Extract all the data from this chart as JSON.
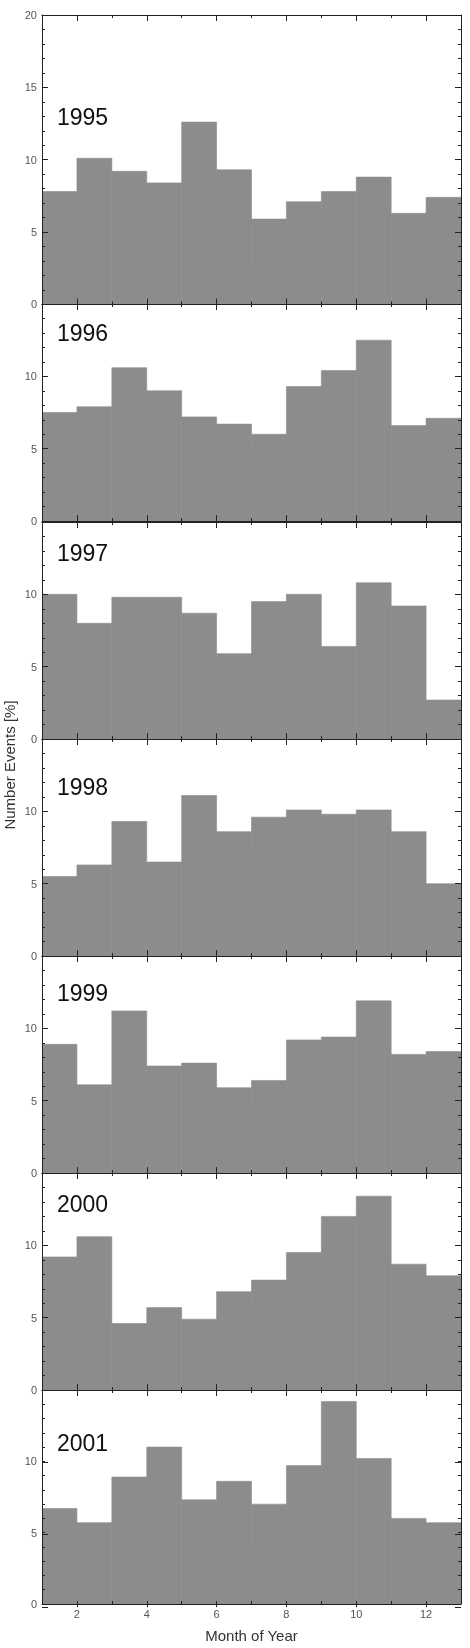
{
  "chart_data": [
    {
      "type": "histogram",
      "title": "1995",
      "bins": [
        1,
        2,
        3,
        4,
        5,
        6,
        7,
        8,
        9,
        10,
        11,
        12,
        13
      ],
      "values": [
        7.8,
        10.1,
        9.2,
        8.4,
        12.6,
        9.3,
        5.9,
        7.1,
        7.8,
        8.8,
        6.3,
        7.4
      ],
      "color": "#8c8c8c",
      "xlim": [
        1,
        13
      ],
      "xticks": [
        2,
        {
          "value": 3,
          "label": null
        },
        4,
        {
          "value": 5,
          "label": null
        },
        6,
        {
          "value": 7,
          "label": null
        },
        8,
        {
          "value": 9,
          "label": null
        },
        10,
        {
          "value": 11,
          "label": null
        },
        12
      ],
      "ylim": [
        0,
        20
      ],
      "yticks": [
        0,
        {
          "value": 1,
          "label": null
        },
        {
          "value": 2,
          "label": null
        },
        {
          "value": 3,
          "label": null
        },
        {
          "value": 4,
          "label": null
        },
        5,
        {
          "value": 6,
          "label": null
        },
        {
          "value": 7,
          "label": null
        },
        {
          "value": 8,
          "label": null
        },
        {
          "value": 9,
          "label": null
        },
        10,
        {
          "value": 11,
          "label": null
        },
        {
          "value": 12,
          "label": null
        },
        {
          "value": 13,
          "label": null
        },
        {
          "value": 14,
          "label": null
        },
        15,
        {
          "value": 16,
          "label": null
        },
        {
          "value": 17,
          "label": null
        },
        {
          "value": 18,
          "label": null
        },
        {
          "value": 19,
          "label": null
        },
        20
      ],
      "tick_labels": "y"
    },
    {
      "type": "histogram",
      "title": "1996",
      "bins": [
        1,
        2,
        3,
        4,
        5,
        6,
        7,
        8,
        9,
        10,
        11,
        12,
        13
      ],
      "values": [
        7.5,
        7.9,
        10.6,
        9.0,
        7.2,
        6.7,
        6.0,
        9.3,
        10.4,
        12.5,
        6.6,
        7.1
      ],
      "color": "#8c8c8c",
      "xlim": [
        1,
        13
      ],
      "xticks": [
        2,
        {
          "value": 3,
          "label": null
        },
        4,
        {
          "value": 5,
          "label": null
        },
        6,
        {
          "value": 7,
          "label": null
        },
        8,
        {
          "value": 9,
          "label": null
        },
        10,
        {
          "value": 11,
          "label": null
        },
        12
      ],
      "ylim": [
        0,
        15
      ],
      "yticks": [
        0,
        {
          "value": 1,
          "label": null
        },
        {
          "value": 2,
          "label": null
        },
        {
          "value": 3,
          "label": null
        },
        {
          "value": 4,
          "label": null
        },
        5,
        {
          "value": 6,
          "label": null
        },
        {
          "value": 7,
          "label": null
        },
        {
          "value": 8,
          "label": null
        },
        {
          "value": 9,
          "label": null
        },
        10,
        {
          "value": 11,
          "label": null
        },
        {
          "value": 12,
          "label": null
        },
        {
          "value": 13,
          "label": null
        },
        {
          "value": 14,
          "label": null
        }
      ],
      "tick_labels": "y"
    },
    {
      "type": "histogram",
      "title": "1997",
      "bins": [
        1,
        2,
        3,
        4,
        5,
        6,
        7,
        8,
        9,
        10,
        11,
        12,
        13
      ],
      "values": [
        10.0,
        8.0,
        9.8,
        9.8,
        8.7,
        5.9,
        9.5,
        10.0,
        6.4,
        10.8,
        9.2,
        2.7
      ],
      "color": "#8c8c8c",
      "xlim": [
        1,
        13
      ],
      "xticks": [
        2,
        {
          "value": 3,
          "label": null
        },
        4,
        {
          "value": 5,
          "label": null
        },
        6,
        {
          "value": 7,
          "label": null
        },
        8,
        {
          "value": 9,
          "label": null
        },
        10,
        {
          "value": 11,
          "label": null
        },
        12
      ],
      "ylim": [
        0,
        15
      ],
      "yticks": [
        0,
        {
          "value": 1,
          "label": null
        },
        {
          "value": 2,
          "label": null
        },
        {
          "value": 3,
          "label": null
        },
        {
          "value": 4,
          "label": null
        },
        5,
        {
          "value": 6,
          "label": null
        },
        {
          "value": 7,
          "label": null
        },
        {
          "value": 8,
          "label": null
        },
        {
          "value": 9,
          "label": null
        },
        10,
        {
          "value": 11,
          "label": null
        },
        {
          "value": 12,
          "label": null
        },
        {
          "value": 13,
          "label": null
        },
        {
          "value": 14,
          "label": null
        }
      ],
      "tick_labels": "y"
    },
    {
      "type": "histogram",
      "title": "1998",
      "ylabel": "Number Events [%]",
      "bins": [
        1,
        2,
        3,
        4,
        5,
        6,
        7,
        8,
        9,
        10,
        11,
        12,
        13
      ],
      "values": [
        5.5,
        6.3,
        9.3,
        6.5,
        11.1,
        8.6,
        9.6,
        10.1,
        9.8,
        10.1,
        8.6,
        5.0
      ],
      "color": "#8c8c8c",
      "xlim": [
        1,
        13
      ],
      "xticks": [
        2,
        {
          "value": 3,
          "label": null
        },
        4,
        {
          "value": 5,
          "label": null
        },
        6,
        {
          "value": 7,
          "label": null
        },
        8,
        {
          "value": 9,
          "label": null
        },
        10,
        {
          "value": 11,
          "label": null
        },
        12
      ],
      "ylim": [
        0,
        15
      ],
      "yticks": [
        0,
        {
          "value": 1,
          "label": null
        },
        {
          "value": 2,
          "label": null
        },
        {
          "value": 3,
          "label": null
        },
        {
          "value": 4,
          "label": null
        },
        5,
        {
          "value": 6,
          "label": null
        },
        {
          "value": 7,
          "label": null
        },
        {
          "value": 8,
          "label": null
        },
        {
          "value": 9,
          "label": null
        },
        10,
        {
          "value": 11,
          "label": null
        },
        {
          "value": 12,
          "label": null
        },
        {
          "value": 13,
          "label": null
        },
        {
          "value": 14,
          "label": null
        }
      ],
      "tick_labels": "y"
    },
    {
      "type": "histogram",
      "title": "1999",
      "bins": [
        1,
        2,
        3,
        4,
        5,
        6,
        7,
        8,
        9,
        10,
        11,
        12,
        13
      ],
      "values": [
        8.9,
        6.1,
        11.2,
        7.4,
        7.6,
        5.9,
        6.4,
        9.2,
        9.4,
        11.9,
        8.2,
        8.4
      ],
      "color": "#8c8c8c",
      "xlim": [
        1,
        13
      ],
      "xticks": [
        2,
        {
          "value": 3,
          "label": null
        },
        4,
        {
          "value": 5,
          "label": null
        },
        6,
        {
          "value": 7,
          "label": null
        },
        8,
        {
          "value": 9,
          "label": null
        },
        10,
        {
          "value": 11,
          "label": null
        },
        12
      ],
      "ylim": [
        0,
        15
      ],
      "yticks": [
        0,
        {
          "value": 1,
          "label": null
        },
        {
          "value": 2,
          "label": null
        },
        {
          "value": 3,
          "label": null
        },
        {
          "value": 4,
          "label": null
        },
        5,
        {
          "value": 6,
          "label": null
        },
        {
          "value": 7,
          "label": null
        },
        {
          "value": 8,
          "label": null
        },
        {
          "value": 9,
          "label": null
        },
        10,
        {
          "value": 11,
          "label": null
        },
        {
          "value": 12,
          "label": null
        },
        {
          "value": 13,
          "label": null
        },
        {
          "value": 14,
          "label": null
        }
      ],
      "tick_labels": "y"
    },
    {
      "type": "histogram",
      "title": "2000",
      "bins": [
        1,
        2,
        3,
        4,
        5,
        6,
        7,
        8,
        9,
        10,
        11,
        12,
        13
      ],
      "values": [
        9.2,
        10.6,
        4.6,
        5.7,
        4.9,
        6.8,
        7.6,
        9.5,
        12.0,
        13.4,
        8.7,
        7.9
      ],
      "color": "#8c8c8c",
      "xlim": [
        1,
        13
      ],
      "xticks": [
        2,
        {
          "value": 3,
          "label": null
        },
        4,
        {
          "value": 5,
          "label": null
        },
        6,
        {
          "value": 7,
          "label": null
        },
        8,
        {
          "value": 9,
          "label": null
        },
        10,
        {
          "value": 11,
          "label": null
        },
        12
      ],
      "ylim": [
        0,
        15
      ],
      "yticks": [
        0,
        {
          "value": 1,
          "label": null
        },
        {
          "value": 2,
          "label": null
        },
        {
          "value": 3,
          "label": null
        },
        {
          "value": 4,
          "label": null
        },
        5,
        {
          "value": 6,
          "label": null
        },
        {
          "value": 7,
          "label": null
        },
        {
          "value": 8,
          "label": null
        },
        {
          "value": 9,
          "label": null
        },
        10,
        {
          "value": 11,
          "label": null
        },
        {
          "value": 12,
          "label": null
        },
        {
          "value": 13,
          "label": null
        },
        {
          "value": 14,
          "label": null
        }
      ],
      "tick_labels": "y"
    },
    {
      "type": "histogram",
      "title": "2001",
      "xlabel": "Month of Year",
      "bins": [
        1,
        2,
        3,
        4,
        5,
        6,
        7,
        8,
        9,
        10,
        11,
        12,
        13
      ],
      "values": [
        6.7,
        5.7,
        8.9,
        11.0,
        7.3,
        8.6,
        7.0,
        9.7,
        14.2,
        10.2,
        6.0,
        5.7
      ],
      "color": "#8c8c8c",
      "xlim": [
        1,
        13
      ],
      "xticks": [
        2,
        {
          "value": 3,
          "label": null
        },
        4,
        {
          "value": 5,
          "label": null
        },
        6,
        {
          "value": 7,
          "label": null
        },
        8,
        {
          "value": 9,
          "label": null
        },
        10,
        {
          "value": 11,
          "label": null
        },
        12
      ],
      "ylim": [
        0,
        15
      ],
      "yticks": [
        0,
        {
          "value": 1,
          "label": null
        },
        {
          "value": 2,
          "label": null
        },
        {
          "value": 3,
          "label": null
        },
        {
          "value": 4,
          "label": null
        },
        5,
        {
          "value": 6,
          "label": null
        },
        {
          "value": 7,
          "label": null
        },
        {
          "value": 8,
          "label": null
        },
        {
          "value": 9,
          "label": null
        },
        10,
        {
          "value": 11,
          "label": null
        },
        {
          "value": 12,
          "label": null
        },
        {
          "value": 13,
          "label": null
        },
        {
          "value": 14,
          "label": null
        }
      ]
    }
  ]
}
